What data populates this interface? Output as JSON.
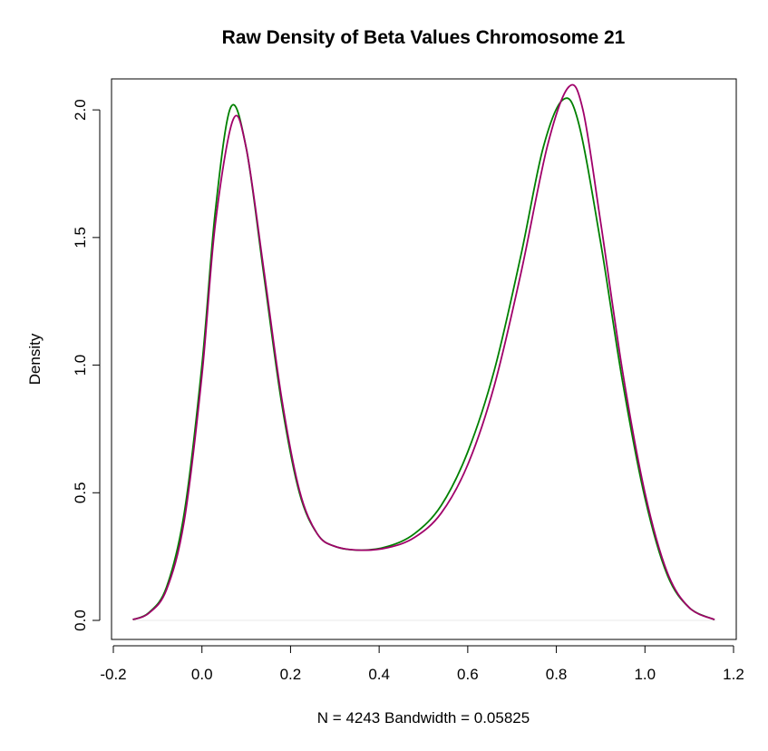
{
  "chart_data": {
    "type": "line",
    "title": "Raw Density of Beta Values Chromosome 21",
    "xlabel": "N = 4243   Bandwidth = 0.05825",
    "ylabel": "Density",
    "xlim": [
      -0.2,
      1.2
    ],
    "ylim": [
      0.0,
      2.1
    ],
    "x_ticks": [
      "-0.2",
      "0.0",
      "0.2",
      "0.4",
      "0.6",
      "0.8",
      "1.0",
      "1.2"
    ],
    "y_ticks": [
      "0.0",
      "0.5",
      "1.0",
      "1.5",
      "2.0"
    ],
    "grid": false,
    "legend": "none",
    "baseline": {
      "y": 0,
      "color": "#e8e8e8"
    },
    "series": [
      {
        "color": "#008000",
        "points": [
          [
            -0.156,
            0.003
          ],
          [
            -0.12,
            0.03
          ],
          [
            -0.08,
            0.13
          ],
          [
            -0.04,
            0.42
          ],
          [
            0.0,
            1.0
          ],
          [
            0.03,
            1.6
          ],
          [
            0.065,
            2.01
          ],
          [
            0.1,
            1.85
          ],
          [
            0.14,
            1.35
          ],
          [
            0.18,
            0.85
          ],
          [
            0.22,
            0.5
          ],
          [
            0.26,
            0.34
          ],
          [
            0.3,
            0.29
          ],
          [
            0.36,
            0.275
          ],
          [
            0.42,
            0.29
          ],
          [
            0.48,
            0.34
          ],
          [
            0.54,
            0.45
          ],
          [
            0.6,
            0.66
          ],
          [
            0.66,
            0.98
          ],
          [
            0.72,
            1.43
          ],
          [
            0.77,
            1.85
          ],
          [
            0.815,
            2.04
          ],
          [
            0.85,
            1.95
          ],
          [
            0.9,
            1.48
          ],
          [
            0.95,
            0.93
          ],
          [
            1.0,
            0.48
          ],
          [
            1.05,
            0.18
          ],
          [
            1.1,
            0.05
          ],
          [
            1.157,
            0.003
          ]
        ]
      },
      {
        "color": "#a0006a",
        "points": [
          [
            -0.156,
            0.003
          ],
          [
            -0.12,
            0.028
          ],
          [
            -0.08,
            0.12
          ],
          [
            -0.04,
            0.39
          ],
          [
            0.0,
            0.96
          ],
          [
            0.03,
            1.55
          ],
          [
            0.07,
            1.96
          ],
          [
            0.1,
            1.85
          ],
          [
            0.14,
            1.37
          ],
          [
            0.18,
            0.87
          ],
          [
            0.22,
            0.51
          ],
          [
            0.26,
            0.34
          ],
          [
            0.3,
            0.29
          ],
          [
            0.36,
            0.275
          ],
          [
            0.42,
            0.285
          ],
          [
            0.48,
            0.325
          ],
          [
            0.54,
            0.42
          ],
          [
            0.6,
            0.61
          ],
          [
            0.66,
            0.92
          ],
          [
            0.72,
            1.36
          ],
          [
            0.78,
            1.86
          ],
          [
            0.828,
            2.09
          ],
          [
            0.86,
            2.0
          ],
          [
            0.9,
            1.56
          ],
          [
            0.95,
            0.97
          ],
          [
            1.0,
            0.5
          ],
          [
            1.05,
            0.19
          ],
          [
            1.1,
            0.05
          ],
          [
            1.157,
            0.003
          ]
        ]
      }
    ]
  }
}
